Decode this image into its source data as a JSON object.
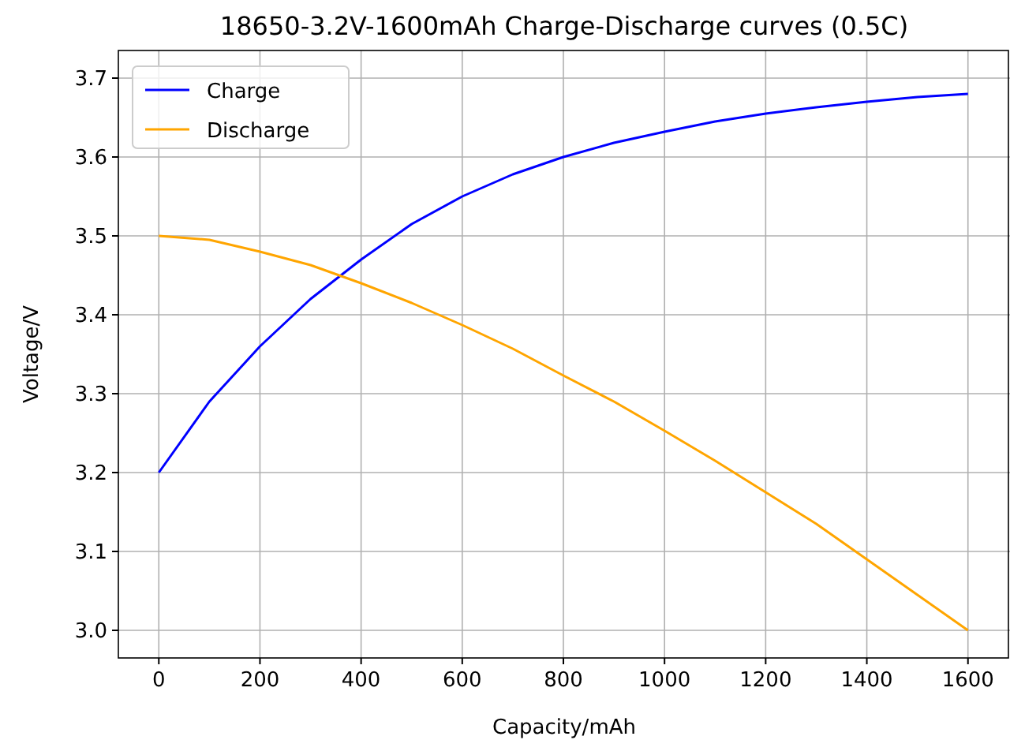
{
  "chart_data": {
    "type": "line",
    "title": "18650-3.2V-1600mAh Charge-Discharge curves (0.5C)",
    "xlabel": "Capacity/mAh",
    "ylabel": "Voltage/V",
    "x": [
      0,
      100,
      200,
      300,
      400,
      500,
      600,
      700,
      800,
      900,
      1000,
      1100,
      1200,
      1300,
      1400,
      1500,
      1600
    ],
    "series": [
      {
        "name": "Charge",
        "color": "#0000ff",
        "values": [
          3.2,
          3.29,
          3.36,
          3.42,
          3.47,
          3.515,
          3.55,
          3.578,
          3.6,
          3.618,
          3.632,
          3.645,
          3.655,
          3.663,
          3.67,
          3.676,
          3.68
        ]
      },
      {
        "name": "Discharge",
        "color": "#ffa500",
        "values": [
          3.5,
          3.495,
          3.48,
          3.463,
          3.44,
          3.415,
          3.387,
          3.357,
          3.323,
          3.29,
          3.253,
          3.215,
          3.175,
          3.135,
          3.09,
          3.045,
          3.0
        ]
      }
    ],
    "xlim": [
      -80,
      1680
    ],
    "ylim": [
      2.965,
      3.735
    ],
    "xticks": [
      0,
      200,
      400,
      600,
      800,
      1000,
      1200,
      1400,
      1600
    ],
    "yticks": [
      {
        "value": 3.0,
        "label": "3.0"
      },
      {
        "value": 3.1,
        "label": "3.1"
      },
      {
        "value": 3.2,
        "label": "3.2"
      },
      {
        "value": 3.3,
        "label": "3.3"
      },
      {
        "value": 3.4,
        "label": "3.4"
      },
      {
        "value": 3.5,
        "label": "3.5"
      },
      {
        "value": 3.6,
        "label": "3.6"
      },
      {
        "value": 3.7,
        "label": "3.7"
      }
    ],
    "grid": true,
    "legend": "top left",
    "marker": "none",
    "line_style": "solid"
  }
}
